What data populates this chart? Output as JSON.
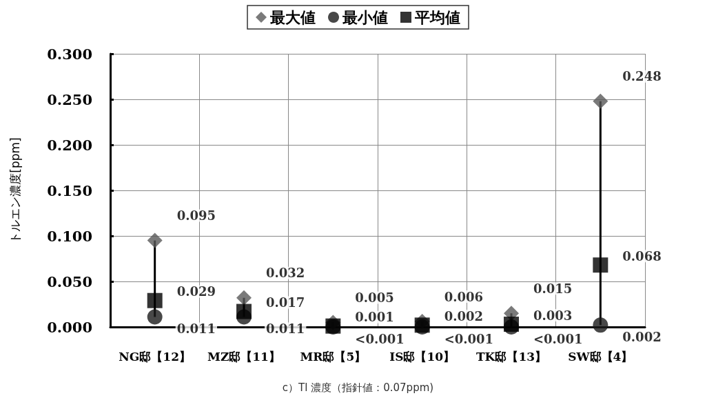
{
  "chart_data": {
    "type": "scatter",
    "ylabel": "トルエン濃度[ppm]",
    "categories": [
      "NG邸【12】",
      "MZ邸【11】",
      "MR邸【5】",
      "IS邸【10】",
      "TK邸【13】",
      "SW邸【4】"
    ],
    "series": [
      {
        "name": "最大値",
        "color": "#595959",
        "marker": "diamond",
        "values": [
          0.095,
          0.032,
          0.005,
          0.006,
          0.015,
          0.248
        ],
        "value_labels": [
          "0.095",
          "0.032",
          "0.005",
          "0.006",
          "0.015",
          "0.248"
        ]
      },
      {
        "name": "最小値",
        "color": "#1a1a1a",
        "marker": "circle",
        "values": [
          0.011,
          0.011,
          0,
          0,
          0,
          0.002
        ],
        "value_labels": [
          "0.011",
          "0.011",
          "<0.001",
          "<0.001",
          "<0.001",
          "0.002"
        ]
      },
      {
        "name": "平均値",
        "color": "#000000",
        "marker": "square",
        "values": [
          0.029,
          0.017,
          0.001,
          0.002,
          0.003,
          0.068
        ],
        "value_labels": [
          "0.029",
          "0.017",
          "0.001",
          "0.002",
          "0.003",
          "0.068"
        ]
      }
    ],
    "ylim": [
      0,
      0.3
    ],
    "yticks": [
      {
        "value": 0,
        "label": "0.000"
      },
      {
        "value": 0.05,
        "label": "0.050"
      },
      {
        "value": 0.1,
        "label": "0.100"
      },
      {
        "value": 0.15,
        "label": "0.150"
      },
      {
        "value": 0.2,
        "label": "0.200"
      },
      {
        "value": 0.25,
        "label": "0.250"
      },
      {
        "value": 0.3,
        "label": "0.300"
      }
    ],
    "grid": true,
    "legend": "top",
    "annotations": [
      "c）Tl 濃度（指針値：0.07ppm)"
    ]
  }
}
